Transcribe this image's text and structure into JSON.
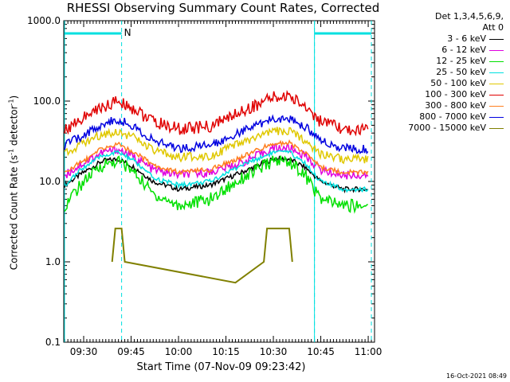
{
  "chart_data": {
    "type": "line",
    "title": "RHESSI Observing Summary Count Rates, Corrected",
    "xlabel": "Start Time (07-Nov-09 09:23:42)",
    "ylabel": "Corrected Count Rate (s",
    "ylabel_sup": "-1",
    "ylabel_tail": " detector",
    "ylabel_end": ")",
    "y_scale": "log",
    "ylim": [
      0.1,
      1000
    ],
    "y_ticks": [
      "1000.0",
      "100.0",
      "10.0",
      "1.0",
      "0.1"
    ],
    "xlim": [
      "09:23:42",
      "11:02:00"
    ],
    "x_ticks": [
      "09:30",
      "09:45",
      "10:00",
      "10:15",
      "10:30",
      "10:45",
      "11:00"
    ],
    "legend_header": [
      "Det 1,3,4,5,6,9,",
      "Att 0"
    ],
    "series": [
      {
        "name": "3 - 6 keV",
        "color": "#000000",
        "points": [
          [
            "09:24",
            9
          ],
          [
            "09:30",
            13
          ],
          [
            "09:36",
            18
          ],
          [
            "09:41",
            19
          ],
          [
            "09:46",
            15
          ],
          [
            "09:52",
            10
          ],
          [
            "10:00",
            8
          ],
          [
            "10:10",
            9
          ],
          [
            "10:20",
            13
          ],
          [
            "10:30",
            19
          ],
          [
            "10:35",
            19
          ],
          [
            "10:40",
            15
          ],
          [
            "10:45",
            10
          ],
          [
            "10:52",
            8
          ],
          [
            "11:00",
            8
          ]
        ]
      },
      {
        "name": "6 - 12 keV",
        "color": "#e000e0",
        "points": [
          [
            "09:24",
            12
          ],
          [
            "09:30",
            17
          ],
          [
            "09:36",
            23
          ],
          [
            "09:41",
            25
          ],
          [
            "09:46",
            20
          ],
          [
            "09:52",
            14
          ],
          [
            "10:00",
            12
          ],
          [
            "10:10",
            13
          ],
          [
            "10:20",
            17
          ],
          [
            "10:30",
            26
          ],
          [
            "10:35",
            26
          ],
          [
            "10:40",
            21
          ],
          [
            "10:45",
            14
          ],
          [
            "10:52",
            12
          ],
          [
            "11:00",
            12
          ]
        ]
      },
      {
        "name": "12 - 25 keV",
        "color": "#00e000",
        "points": [
          [
            "09:24",
            5
          ],
          [
            "09:30",
            10
          ],
          [
            "09:36",
            16
          ],
          [
            "09:41",
            18
          ],
          [
            "09:46",
            13
          ],
          [
            "09:52",
            7
          ],
          [
            "10:00",
            5
          ],
          [
            "10:10",
            6
          ],
          [
            "10:20",
            11
          ],
          [
            "10:30",
            18
          ],
          [
            "10:35",
            18
          ],
          [
            "10:40",
            12
          ],
          [
            "10:45",
            6
          ],
          [
            "10:52",
            5
          ],
          [
            "11:00",
            5
          ]
        ]
      },
      {
        "name": "25 - 50 keV",
        "color": "#00e0e0",
        "points": [
          [
            "09:24",
            9
          ],
          [
            "09:30",
            15
          ],
          [
            "09:36",
            21
          ],
          [
            "09:41",
            23
          ],
          [
            "09:46",
            18
          ],
          [
            "09:52",
            11
          ],
          [
            "10:00",
            9
          ],
          [
            "10:10",
            10
          ],
          [
            "10:20",
            16
          ],
          [
            "10:30",
            23
          ],
          [
            "10:35",
            23
          ],
          [
            "10:40",
            17
          ],
          [
            "10:45",
            10
          ],
          [
            "10:52",
            8
          ],
          [
            "11:00",
            8
          ]
        ]
      },
      {
        "name": "50 - 100 keV",
        "color": "#e0c800",
        "points": [
          [
            "09:24",
            23
          ],
          [
            "09:30",
            30
          ],
          [
            "09:36",
            39
          ],
          [
            "09:41",
            42
          ],
          [
            "09:46",
            35
          ],
          [
            "09:52",
            24
          ],
          [
            "10:00",
            20
          ],
          [
            "10:10",
            21
          ],
          [
            "10:20",
            30
          ],
          [
            "10:30",
            42
          ],
          [
            "10:35",
            42
          ],
          [
            "10:40",
            33
          ],
          [
            "10:45",
            22
          ],
          [
            "10:52",
            19
          ],
          [
            "11:00",
            19
          ]
        ]
      },
      {
        "name": "100 - 300 keV",
        "color": "#e00000",
        "points": [
          [
            "09:24",
            45
          ],
          [
            "09:30",
            62
          ],
          [
            "09:36",
            85
          ],
          [
            "09:41",
            100
          ],
          [
            "09:46",
            80
          ],
          [
            "09:52",
            55
          ],
          [
            "10:00",
            45
          ],
          [
            "10:10",
            48
          ],
          [
            "10:20",
            75
          ],
          [
            "10:30",
            110
          ],
          [
            "10:35",
            115
          ],
          [
            "10:40",
            88
          ],
          [
            "10:45",
            55
          ],
          [
            "10:52",
            44
          ],
          [
            "11:00",
            43
          ]
        ]
      },
      {
        "name": "300 - 800 keV",
        "color": "#ff7f20",
        "points": [
          [
            "09:24",
            13
          ],
          [
            "09:30",
            18
          ],
          [
            "09:36",
            26
          ],
          [
            "09:41",
            29
          ],
          [
            "09:46",
            23
          ],
          [
            "09:52",
            16
          ],
          [
            "10:00",
            13
          ],
          [
            "10:10",
            14
          ],
          [
            "10:20",
            20
          ],
          [
            "10:30",
            30
          ],
          [
            "10:35",
            30
          ],
          [
            "10:40",
            23
          ],
          [
            "10:45",
            15
          ],
          [
            "10:52",
            13
          ],
          [
            "11:00",
            13
          ]
        ]
      },
      {
        "name": "800 - 7000 keV",
        "color": "#0000e0",
        "points": [
          [
            "09:24",
            28
          ],
          [
            "09:30",
            38
          ],
          [
            "09:36",
            52
          ],
          [
            "09:41",
            59
          ],
          [
            "09:46",
            48
          ],
          [
            "09:52",
            32
          ],
          [
            "10:00",
            26
          ],
          [
            "10:10",
            28
          ],
          [
            "10:20",
            42
          ],
          [
            "10:30",
            60
          ],
          [
            "10:35",
            62
          ],
          [
            "10:40",
            48
          ],
          [
            "10:45",
            32
          ],
          [
            "10:52",
            26
          ],
          [
            "11:00",
            25
          ]
        ]
      },
      {
        "name": "7000 - 15000 keV",
        "color": "#808000",
        "points": [
          [
            "09:39",
            1.0
          ],
          [
            "09:40",
            2.6
          ],
          [
            "09:42",
            2.6
          ],
          [
            "09:43",
            1.0
          ],
          [
            "10:18",
            0.55
          ],
          [
            "10:27",
            1.0
          ],
          [
            "10:28",
            2.6
          ],
          [
            "10:35",
            2.6
          ],
          [
            "10:36",
            1.0
          ]
        ]
      }
    ],
    "annotations": {
      "N_marker": "N",
      "cyan_bar_segments": [
        [
          "09:24",
          "09:42"
        ],
        [
          "10:43",
          "11:01"
        ]
      ],
      "dashed_vlines": [
        "09:42",
        "10:43",
        "11:01"
      ],
      "solid_vline": "10:43"
    },
    "grid": false
  },
  "footer": {
    "datestamp": "16-Oct-2021 08:49"
  }
}
